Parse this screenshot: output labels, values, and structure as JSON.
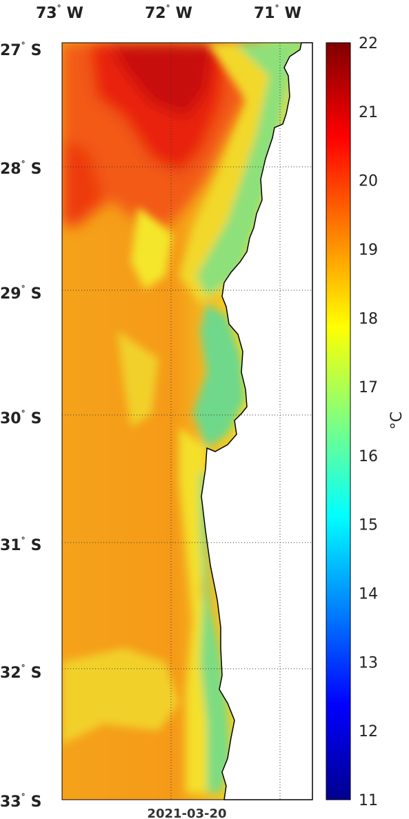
{
  "map": {
    "date": "2021-03-20",
    "longitude_labels": [
      {
        "deg": "73",
        "hemi": "W"
      },
      {
        "deg": "72",
        "hemi": "W"
      },
      {
        "deg": "71",
        "hemi": "W"
      }
    ],
    "latitude_labels": [
      {
        "deg": "27",
        "hemi": "S"
      },
      {
        "deg": "28",
        "hemi": "S"
      },
      {
        "deg": "29",
        "hemi": "S"
      },
      {
        "deg": "30",
        "hemi": "S"
      },
      {
        "deg": "31",
        "hemi": "S"
      },
      {
        "deg": "32",
        "hemi": "S"
      },
      {
        "deg": "33",
        "hemi": "S"
      }
    ],
    "grid": true,
    "land_color": "#ffffff"
  },
  "colorbar": {
    "unit": "°C",
    "min": 11,
    "max": 22,
    "ticks": [
      "22",
      "21",
      "20",
      "19",
      "18",
      "17",
      "16",
      "15",
      "14",
      "13",
      "12",
      "11"
    ],
    "colormap": "jet"
  }
}
